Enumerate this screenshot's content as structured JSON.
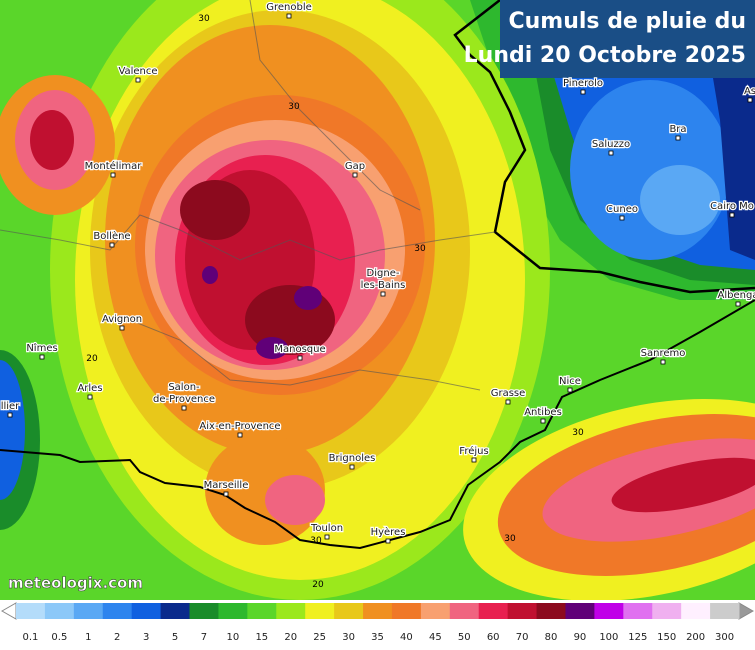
{
  "title": [
    "Cumuls de pluie du",
    "Lundi 20 Octobre 2025"
  ],
  "places": [
    {
      "name": [
        "Grenoble"
      ]
    },
    {
      "name": [
        "Valence"
      ]
    },
    {
      "name": [
        "Montélimar"
      ]
    },
    {
      "name": [
        "Bollène"
      ]
    },
    {
      "name": [
        "Avignon"
      ]
    },
    {
      "name": [
        "Nîmes"
      ]
    },
    {
      "name": [
        "Arles"
      ]
    },
    {
      "name": [
        "Salon-",
        "de-Provence"
      ]
    },
    {
      "name": [
        "Aix-en-Provence"
      ]
    },
    {
      "name": [
        "Marseille"
      ]
    },
    {
      "name": [
        "Toulon"
      ]
    },
    {
      "name": [
        "Hyères"
      ]
    },
    {
      "name": [
        "Brignoles"
      ]
    },
    {
      "name": [
        "Fréjus"
      ]
    },
    {
      "name": [
        "Grasse"
      ]
    },
    {
      "name": [
        "Antibes"
      ]
    },
    {
      "name": [
        "Nice"
      ]
    },
    {
      "name": [
        "Sanremo"
      ]
    },
    {
      "name": [
        "Albenga"
      ]
    },
    {
      "name": [
        "Cuneo"
      ]
    },
    {
      "name": [
        "Cairo Mo"
      ]
    },
    {
      "name": [
        "Bra"
      ]
    },
    {
      "name": [
        "Saluzzo"
      ]
    },
    {
      "name": [
        "Pinerolo"
      ]
    },
    {
      "name": [
        "As"
      ]
    },
    {
      "name": [
        "Gap"
      ]
    },
    {
      "name": [
        "Digne-",
        "les-Bains"
      ]
    },
    {
      "name": [
        "Manosque"
      ]
    },
    {
      "name": [
        "llier"
      ]
    }
  ],
  "contour_labels": [
    30,
    30,
    30,
    30,
    30,
    30,
    20,
    20
  ],
  "watermark": "meteologix.com",
  "legend": {
    "values": [
      0.1,
      0.5,
      1,
      2,
      3,
      5,
      7,
      10,
      15,
      20,
      25,
      30,
      35,
      40,
      45,
      50,
      60,
      70,
      80,
      90,
      100,
      125,
      150,
      200,
      300
    ],
    "colors": [
      "#b4dcfa",
      "#8cc8f8",
      "#5aa8f4",
      "#2d84ee",
      "#1060e0",
      "#0a2a8c",
      "#1a8c2a",
      "#2eb82e",
      "#5ad62a",
      "#9be81c",
      "#f0f020",
      "#e8c81a",
      "#f09020",
      "#f07828",
      "#f8a070",
      "#f06480",
      "#e82050",
      "#c01030",
      "#8c0a1e",
      "#600078",
      "#c000e8",
      "#e070f0",
      "#f0b0f0",
      "#fff0ff",
      "#cccccc"
    ]
  }
}
